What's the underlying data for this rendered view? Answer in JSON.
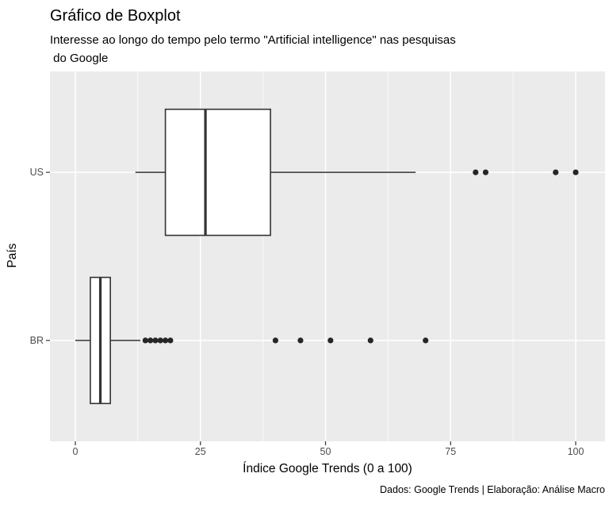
{
  "title": "Gráfico de Boxplot",
  "subtitle": {
    "line1": "Interesse ao longo do tempo pelo termo \"Artificial intelligence\" nas pesquisas",
    "line2": " do Google"
  },
  "caption": "Dados: Google Trends | Elaboração: Análise Macro",
  "axes": {
    "x_title": "Índice Google Trends (0 a 100)",
    "y_title": "País"
  },
  "colors": {
    "panel_bg": "#EBEBEB",
    "grid": "#FFFFFF",
    "box_stroke": "#333333",
    "box_fill": "#FFFFFF",
    "point": "#262626",
    "tick_mark": "#333333",
    "tick_text": "#4D4D4D",
    "text": "#000000"
  },
  "chart_data": {
    "type": "boxplot",
    "orientation": "horizontal",
    "title": "Gráfico de Boxplot",
    "subtitle": "Interesse ao longo do tempo pelo termo \"Artificial intelligence\" nas pesquisas do Google",
    "xlabel": "Índice Google Trends (0 a 100)",
    "ylabel": "País",
    "caption": "Dados: Google Trends | Elaboração: Análise Macro",
    "xlim": [
      0,
      100
    ],
    "x_ticks": [
      0,
      25,
      50,
      75,
      100
    ],
    "x_minor_ticks": [
      12.5,
      37.5,
      62.5,
      87.5
    ],
    "grid": true,
    "categories": [
      "US",
      "BR"
    ],
    "series": [
      {
        "name": "US",
        "whisker_min": 12,
        "q1": 18,
        "median": 26,
        "q3": 39,
        "whisker_max": 68,
        "outliers": [
          80,
          82,
          96,
          100
        ]
      },
      {
        "name": "BR",
        "whisker_min": 0,
        "q1": 3,
        "median": 5,
        "q3": 7,
        "whisker_max": 13,
        "outliers": [
          14,
          15,
          16,
          17,
          18,
          19,
          40,
          45,
          51,
          59,
          70
        ]
      }
    ]
  }
}
